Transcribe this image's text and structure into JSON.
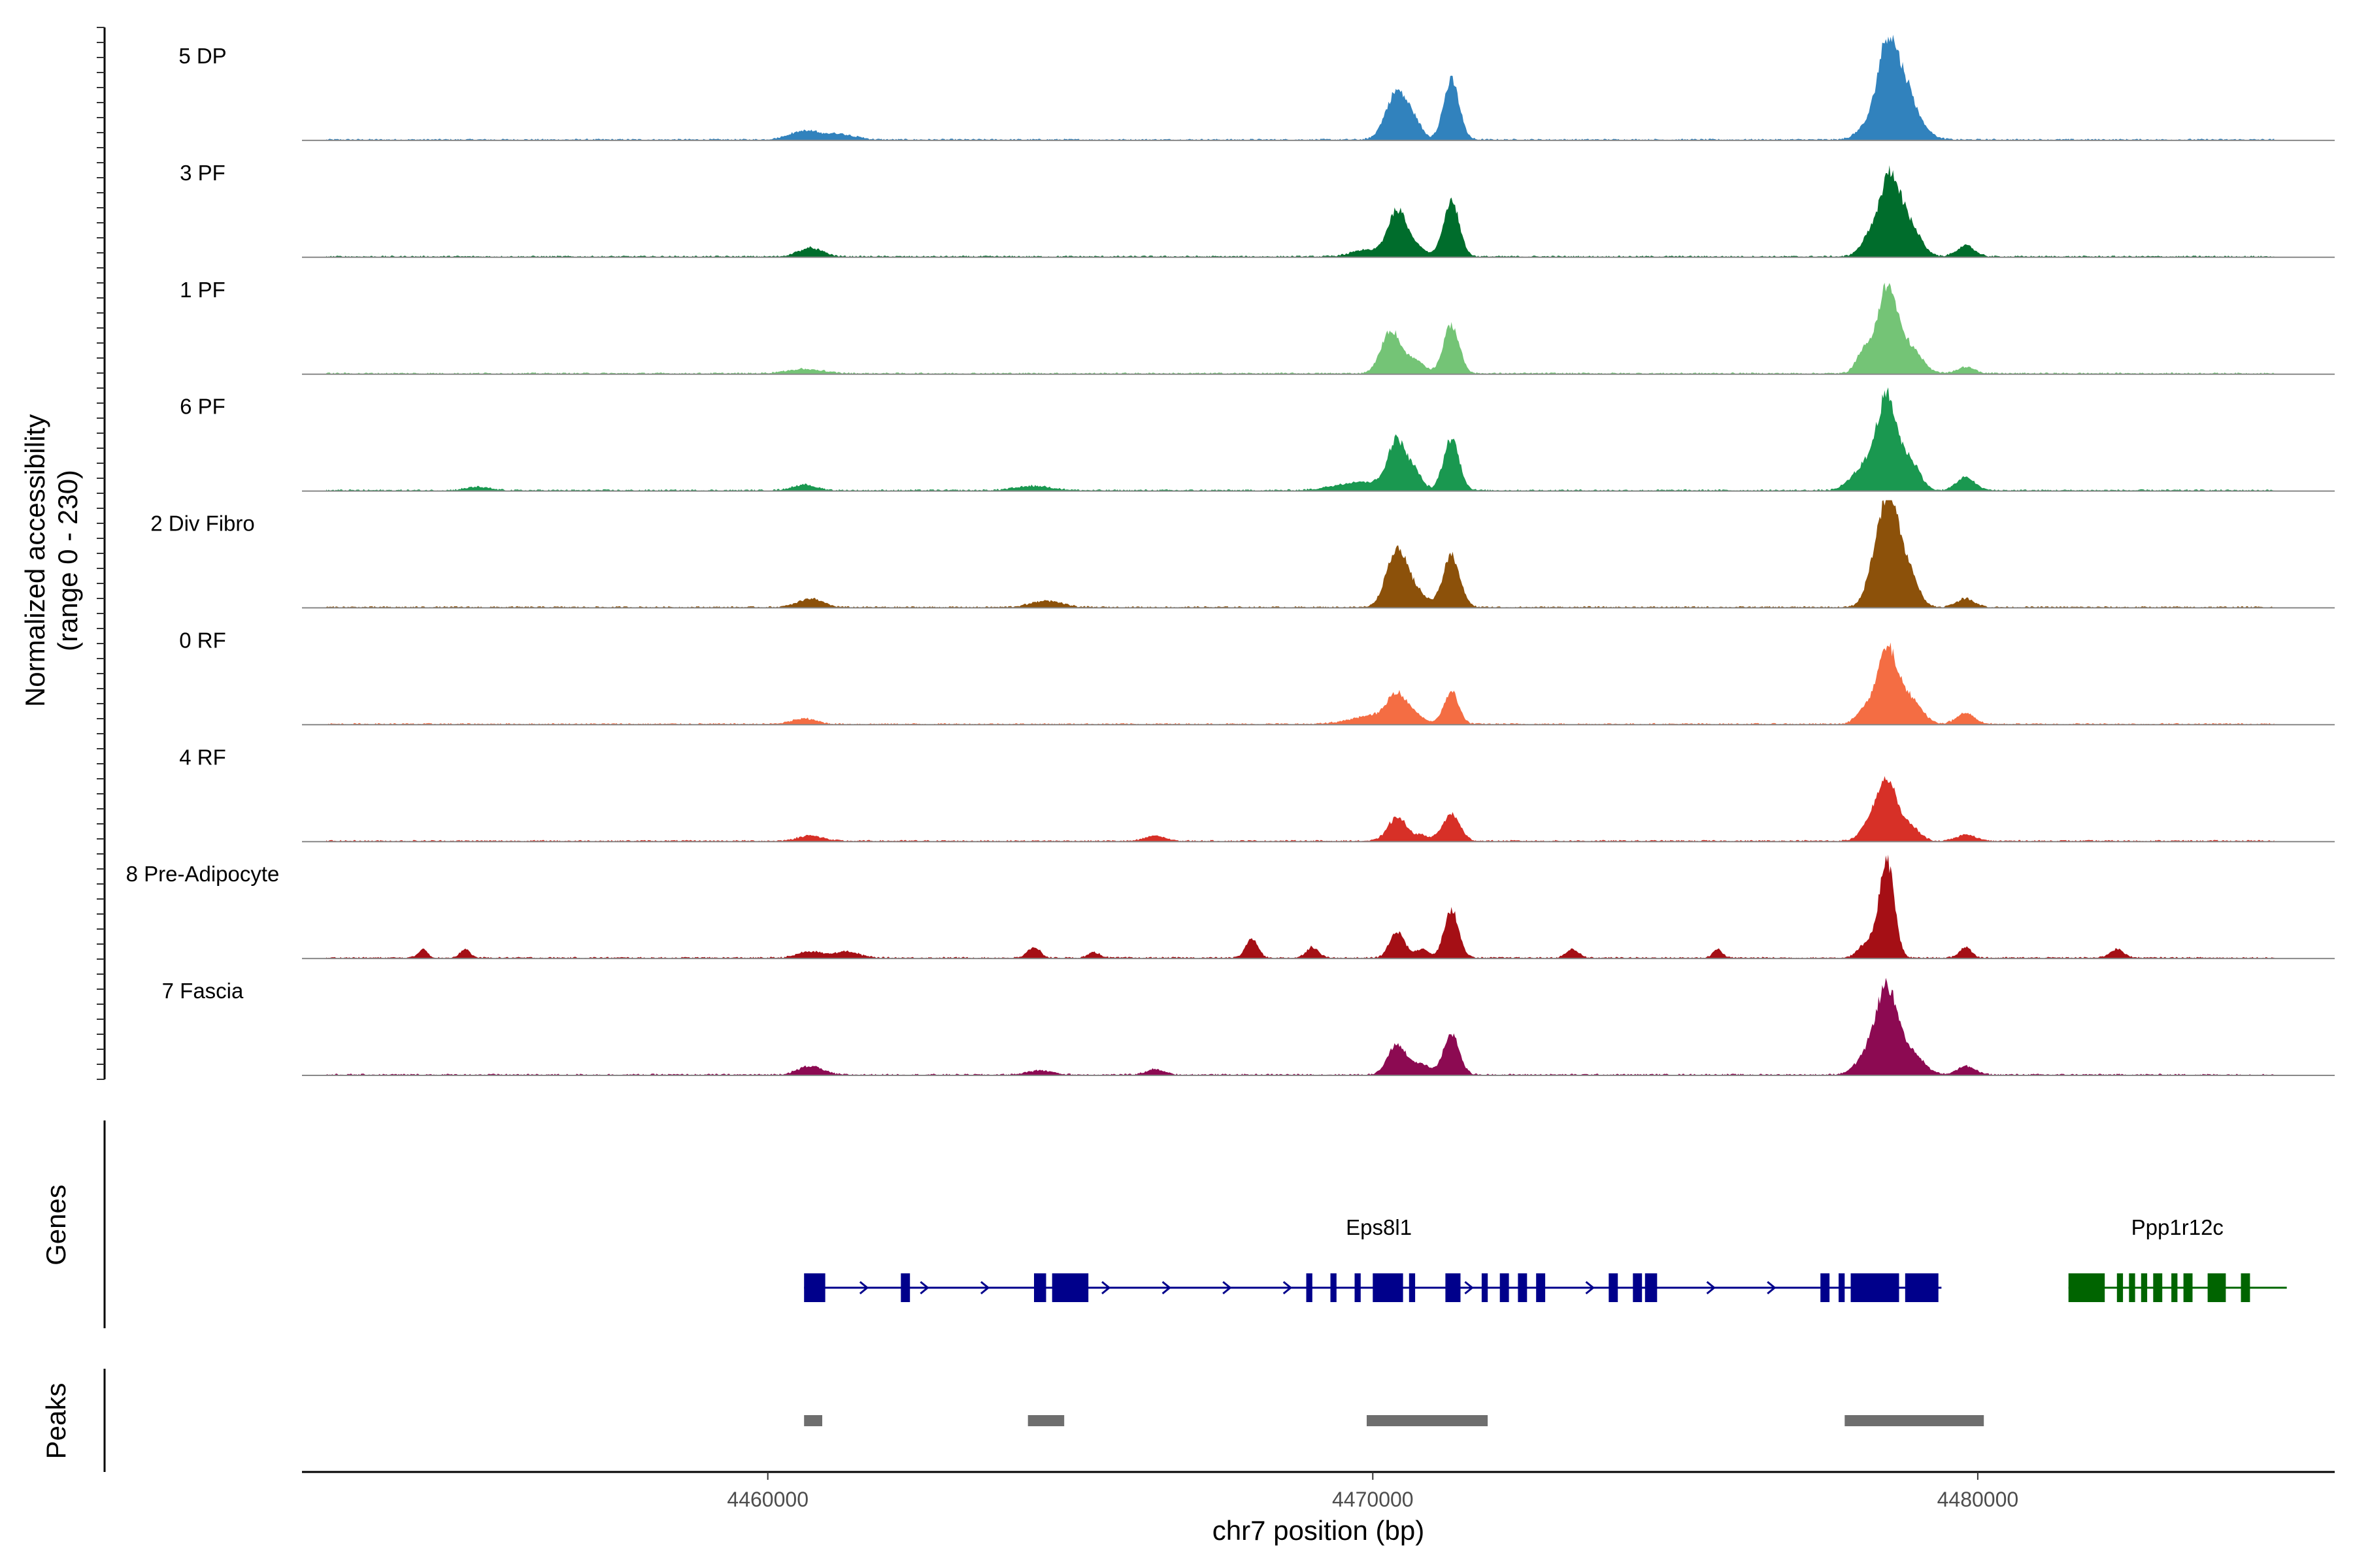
{
  "chart_data": {
    "type": "area",
    "title": "",
    "chromosome": "chr7",
    "xlabel": "chr7 position (bp)",
    "ylabel_line1": "Normalized accessibility",
    "ylabel_line2": "(range 0 - 230)",
    "y_range": [
      0,
      230
    ],
    "xlim": [
      4452300,
      4485900
    ],
    "xticks": [
      4460000,
      4470000,
      4480000
    ],
    "xtick_labels": [
      "4460000",
      "4470000",
      "4480000"
    ],
    "tracks": [
      {
        "name": "5 DP",
        "color": "#3182bd",
        "peaks": [
          [
            4460600,
            250,
            8
          ],
          [
            4461200,
            250,
            5
          ],
          [
            4470400,
            180,
            45
          ],
          [
            4470700,
            120,
            12
          ],
          [
            4471300,
            130,
            55
          ],
          [
            4478100,
            150,
            8
          ],
          [
            4478500,
            170,
            90
          ],
          [
            4478800,
            160,
            35
          ],
          [
            4479000,
            200,
            12
          ]
        ]
      },
      {
        "name": "3 PF",
        "color": "#006d2c",
        "peaks": [
          [
            4460700,
            200,
            8
          ],
          [
            4469900,
            250,
            6
          ],
          [
            4470400,
            150,
            42
          ],
          [
            4470700,
            150,
            10
          ],
          [
            4471300,
            130,
            52
          ],
          [
            4478200,
            150,
            15
          ],
          [
            4478550,
            170,
            75
          ],
          [
            4478900,
            170,
            25
          ],
          [
            4479800,
            150,
            10
          ]
        ]
      },
      {
        "name": "1 PF",
        "color": "#74c476",
        "peaks": [
          [
            4460600,
            300,
            4
          ],
          [
            4470300,
            160,
            40
          ],
          [
            4470700,
            150,
            12
          ],
          [
            4471300,
            130,
            45
          ],
          [
            4478100,
            120,
            18
          ],
          [
            4478500,
            170,
            80
          ],
          [
            4478900,
            180,
            22
          ],
          [
            4479800,
            150,
            6
          ]
        ]
      },
      {
        "name": "6 PF",
        "color": "#1a9850",
        "peaks": [
          [
            4455200,
            200,
            3
          ],
          [
            4460600,
            200,
            5
          ],
          [
            4464400,
            300,
            4
          ],
          [
            4469800,
            400,
            8
          ],
          [
            4470400,
            150,
            45
          ],
          [
            4470700,
            120,
            15
          ],
          [
            4471300,
            130,
            48
          ],
          [
            4478100,
            200,
            20
          ],
          [
            4478500,
            170,
            85
          ],
          [
            4478900,
            150,
            25
          ],
          [
            4479800,
            150,
            12
          ]
        ]
      },
      {
        "name": "2 Div Fibro",
        "color": "#8c510a",
        "peaks": [
          [
            4460700,
            200,
            8
          ],
          [
            4464600,
            250,
            6
          ],
          [
            4470400,
            170,
            55
          ],
          [
            4470750,
            150,
            12
          ],
          [
            4471300,
            140,
            48
          ],
          [
            4478300,
            150,
            25
          ],
          [
            4478550,
            180,
            95
          ],
          [
            4478900,
            150,
            22
          ],
          [
            4479800,
            150,
            8
          ]
        ]
      },
      {
        "name": "0 RF",
        "color": "#f46d43",
        "peaks": [
          [
            4460600,
            200,
            5
          ],
          [
            4470000,
            350,
            8
          ],
          [
            4470400,
            150,
            25
          ],
          [
            4470700,
            150,
            8
          ],
          [
            4471300,
            120,
            30
          ],
          [
            4478100,
            120,
            12
          ],
          [
            4478500,
            170,
            70
          ],
          [
            4478900,
            180,
            22
          ],
          [
            4479800,
            150,
            10
          ]
        ]
      },
      {
        "name": "4 RF",
        "color": "#d73027",
        "peaks": [
          [
            4460700,
            200,
            5
          ],
          [
            4466400,
            150,
            5
          ],
          [
            4470400,
            150,
            22
          ],
          [
            4470800,
            150,
            5
          ],
          [
            4471300,
            140,
            25
          ],
          [
            4478200,
            150,
            12
          ],
          [
            4478500,
            170,
            55
          ],
          [
            4478900,
            150,
            12
          ],
          [
            4479800,
            150,
            6
          ]
        ]
      },
      {
        "name": "8 Pre-Adipocyte",
        "color": "#a50f15",
        "peaks": [
          [
            4454300,
            80,
            8
          ],
          [
            4455000,
            80,
            8
          ],
          [
            4460700,
            200,
            6
          ],
          [
            4461300,
            200,
            6
          ],
          [
            4464400,
            100,
            10
          ],
          [
            4465400,
            100,
            5
          ],
          [
            4468000,
            100,
            18
          ],
          [
            4469000,
            100,
            10
          ],
          [
            4470400,
            120,
            25
          ],
          [
            4470800,
            120,
            8
          ],
          [
            4471300,
            120,
            45
          ],
          [
            4473300,
            100,
            8
          ],
          [
            4475700,
            80,
            8
          ],
          [
            4478200,
            150,
            15
          ],
          [
            4478500,
            120,
            90
          ],
          [
            4479800,
            100,
            10
          ],
          [
            4482300,
            120,
            8
          ]
        ]
      },
      {
        "name": "7 Fascia",
        "color": "#8c0a52",
        "peaks": [
          [
            4460700,
            200,
            8
          ],
          [
            4464500,
            200,
            4
          ],
          [
            4466400,
            150,
            5
          ],
          [
            4470400,
            150,
            28
          ],
          [
            4470800,
            140,
            10
          ],
          [
            4471300,
            130,
            38
          ],
          [
            4478200,
            200,
            18
          ],
          [
            4478500,
            170,
            75
          ],
          [
            4478900,
            200,
            20
          ],
          [
            4479800,
            150,
            8
          ]
        ]
      }
    ],
    "genes_track_label": "Genes",
    "genes": [
      {
        "name": "Eps8l1",
        "color": "#00008b",
        "strand": "+",
        "start": 4460600,
        "end": 4479400,
        "exons": [
          [
            4460600,
            4460950
          ],
          [
            4462200,
            4462350
          ],
          [
            4464400,
            4464600
          ],
          [
            4464700,
            4465300
          ],
          [
            4468900,
            4469000
          ],
          [
            4469300,
            4469400
          ],
          [
            4469700,
            4469800
          ],
          [
            4470000,
            4470500
          ],
          [
            4470600,
            4470700
          ],
          [
            4471200,
            4471450
          ],
          [
            4471800,
            4471900
          ],
          [
            4472100,
            4472250
          ],
          [
            4472400,
            4472550
          ],
          [
            4472700,
            4472850
          ],
          [
            4473900,
            4474050
          ],
          [
            4474300,
            4474450
          ],
          [
            4474500,
            4474700
          ],
          [
            4477400,
            4477550
          ],
          [
            4477700,
            4477800
          ],
          [
            4477900,
            4478700
          ],
          [
            4478800,
            4479350
          ]
        ]
      },
      {
        "name": "Ppp1r12c",
        "color": "#006400",
        "strand": "-",
        "start": 4481500,
        "end": 4485000,
        "exons": [
          [
            4481500,
            4482100
          ],
          [
            4482300,
            4482400
          ],
          [
            4482500,
            4482600
          ],
          [
            4482700,
            4482800
          ],
          [
            4482900,
            4483050
          ],
          [
            4483200,
            4483300
          ],
          [
            4483400,
            4483550
          ],
          [
            4483800,
            4484100
          ],
          [
            4484350,
            4484500
          ]
        ]
      }
    ],
    "peaks_track_label": "Peaks",
    "peak_regions": [
      [
        4460600,
        4460900
      ],
      [
        4464300,
        4464900
      ],
      [
        4469900,
        4471900
      ],
      [
        4477800,
        4480100
      ]
    ]
  }
}
